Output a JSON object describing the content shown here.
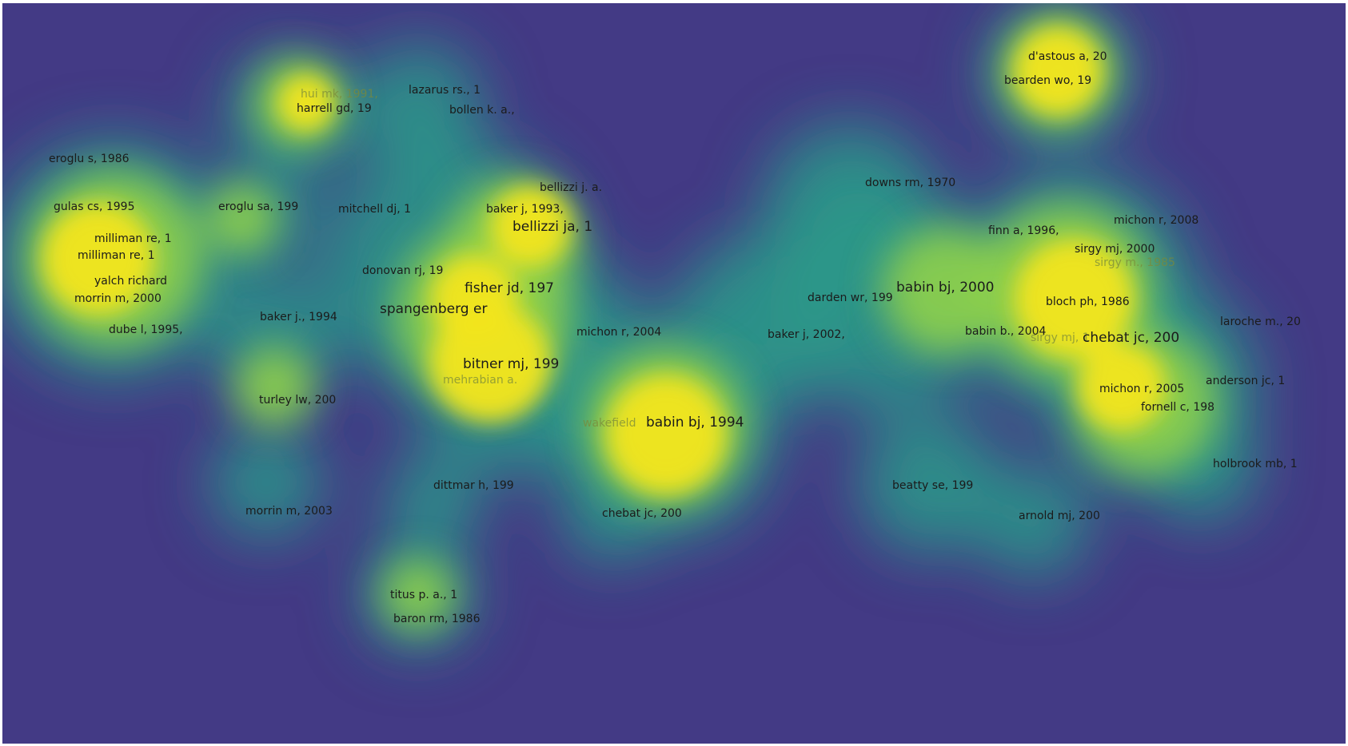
{
  "colors": {
    "low": "#433a85",
    "mid": "#2a9a8a",
    "high": "#f2e520",
    "label": "#1b1b1b"
  },
  "labels": [
    {
      "text": "d'astous a, 20",
      "weight": "normal"
    },
    {
      "text": "bearden wo, 19",
      "weight": "normal"
    },
    {
      "text": "hui mk, 1991,",
      "weight": "faint"
    },
    {
      "text": "harrell gd, 19",
      "weight": "normal"
    },
    {
      "text": "lazarus rs., 1",
      "weight": "normal"
    },
    {
      "text": "bollen k. a.,",
      "weight": "normal"
    },
    {
      "text": "eroglu s, 1986",
      "weight": "normal"
    },
    {
      "text": "gulas cs, 1995",
      "weight": "normal"
    },
    {
      "text": "eroglu sa, 199",
      "weight": "normal"
    },
    {
      "text": "mitchell dj, 1",
      "weight": "normal"
    },
    {
      "text": "bellizzi j. a.",
      "weight": "normal"
    },
    {
      "text": "baker j, 1993,",
      "weight": "normal"
    },
    {
      "text": "bellizzi ja, 1",
      "weight": "big"
    },
    {
      "text": "downs rm, 1970",
      "weight": "normal"
    },
    {
      "text": "finn a, 1996,",
      "weight": "normal"
    },
    {
      "text": "michon r, 2008",
      "weight": "normal"
    },
    {
      "text": "sirgy mj, 2000",
      "weight": "normal"
    },
    {
      "text": "sirgy m., 1985",
      "weight": "faint"
    },
    {
      "text": "milliman re, 1",
      "weight": "normal"
    },
    {
      "text": "milliman re, 1",
      "weight": "normal"
    },
    {
      "text": "donovan rj, 19",
      "weight": "normal"
    },
    {
      "text": "yalch richard",
      "weight": "normal"
    },
    {
      "text": "morrin m, 2000",
      "weight": "normal"
    },
    {
      "text": "fisher jd, 197",
      "weight": "big"
    },
    {
      "text": "spangenberg er",
      "weight": "big"
    },
    {
      "text": "darden wr, 199",
      "weight": "normal"
    },
    {
      "text": "babin bj, 2000",
      "weight": "big"
    },
    {
      "text": "bloch ph, 1986",
      "weight": "normal"
    },
    {
      "text": "baker j., 1994",
      "weight": "normal"
    },
    {
      "text": "dube l, 1995,",
      "weight": "normal"
    },
    {
      "text": "michon r, 2004",
      "weight": "normal"
    },
    {
      "text": "baker j, 2002,",
      "weight": "normal"
    },
    {
      "text": "babin b., 2004",
      "weight": "normal"
    },
    {
      "text": "sirgy mj, 1",
      "weight": "faint"
    },
    {
      "text": "chebat jc, 200",
      "weight": "big"
    },
    {
      "text": "laroche m., 20",
      "weight": "normal"
    },
    {
      "text": "bitner mj, 199",
      "weight": "big"
    },
    {
      "text": "mehrabian a.",
      "weight": "faint"
    },
    {
      "text": "anderson jc, 1",
      "weight": "normal"
    },
    {
      "text": "michon r, 2005",
      "weight": "normal"
    },
    {
      "text": "turley lw, 200",
      "weight": "normal"
    },
    {
      "text": "fornell c, 198",
      "weight": "normal"
    },
    {
      "text": "wakefield",
      "weight": "faint"
    },
    {
      "text": "babin bj, 1994",
      "weight": "big"
    },
    {
      "text": "holbrook mb, 1",
      "weight": "normal"
    },
    {
      "text": "dittmar h, 199",
      "weight": "normal"
    },
    {
      "text": "beatty se, 199",
      "weight": "normal"
    },
    {
      "text": "morrin m, 2003",
      "weight": "normal"
    },
    {
      "text": "chebat jc, 200",
      "weight": "normal"
    },
    {
      "text": "arnold mj, 200",
      "weight": "normal"
    },
    {
      "text": "titus p. a., 1",
      "weight": "normal"
    },
    {
      "text": "baron rm, 1986",
      "weight": "normal"
    }
  ]
}
